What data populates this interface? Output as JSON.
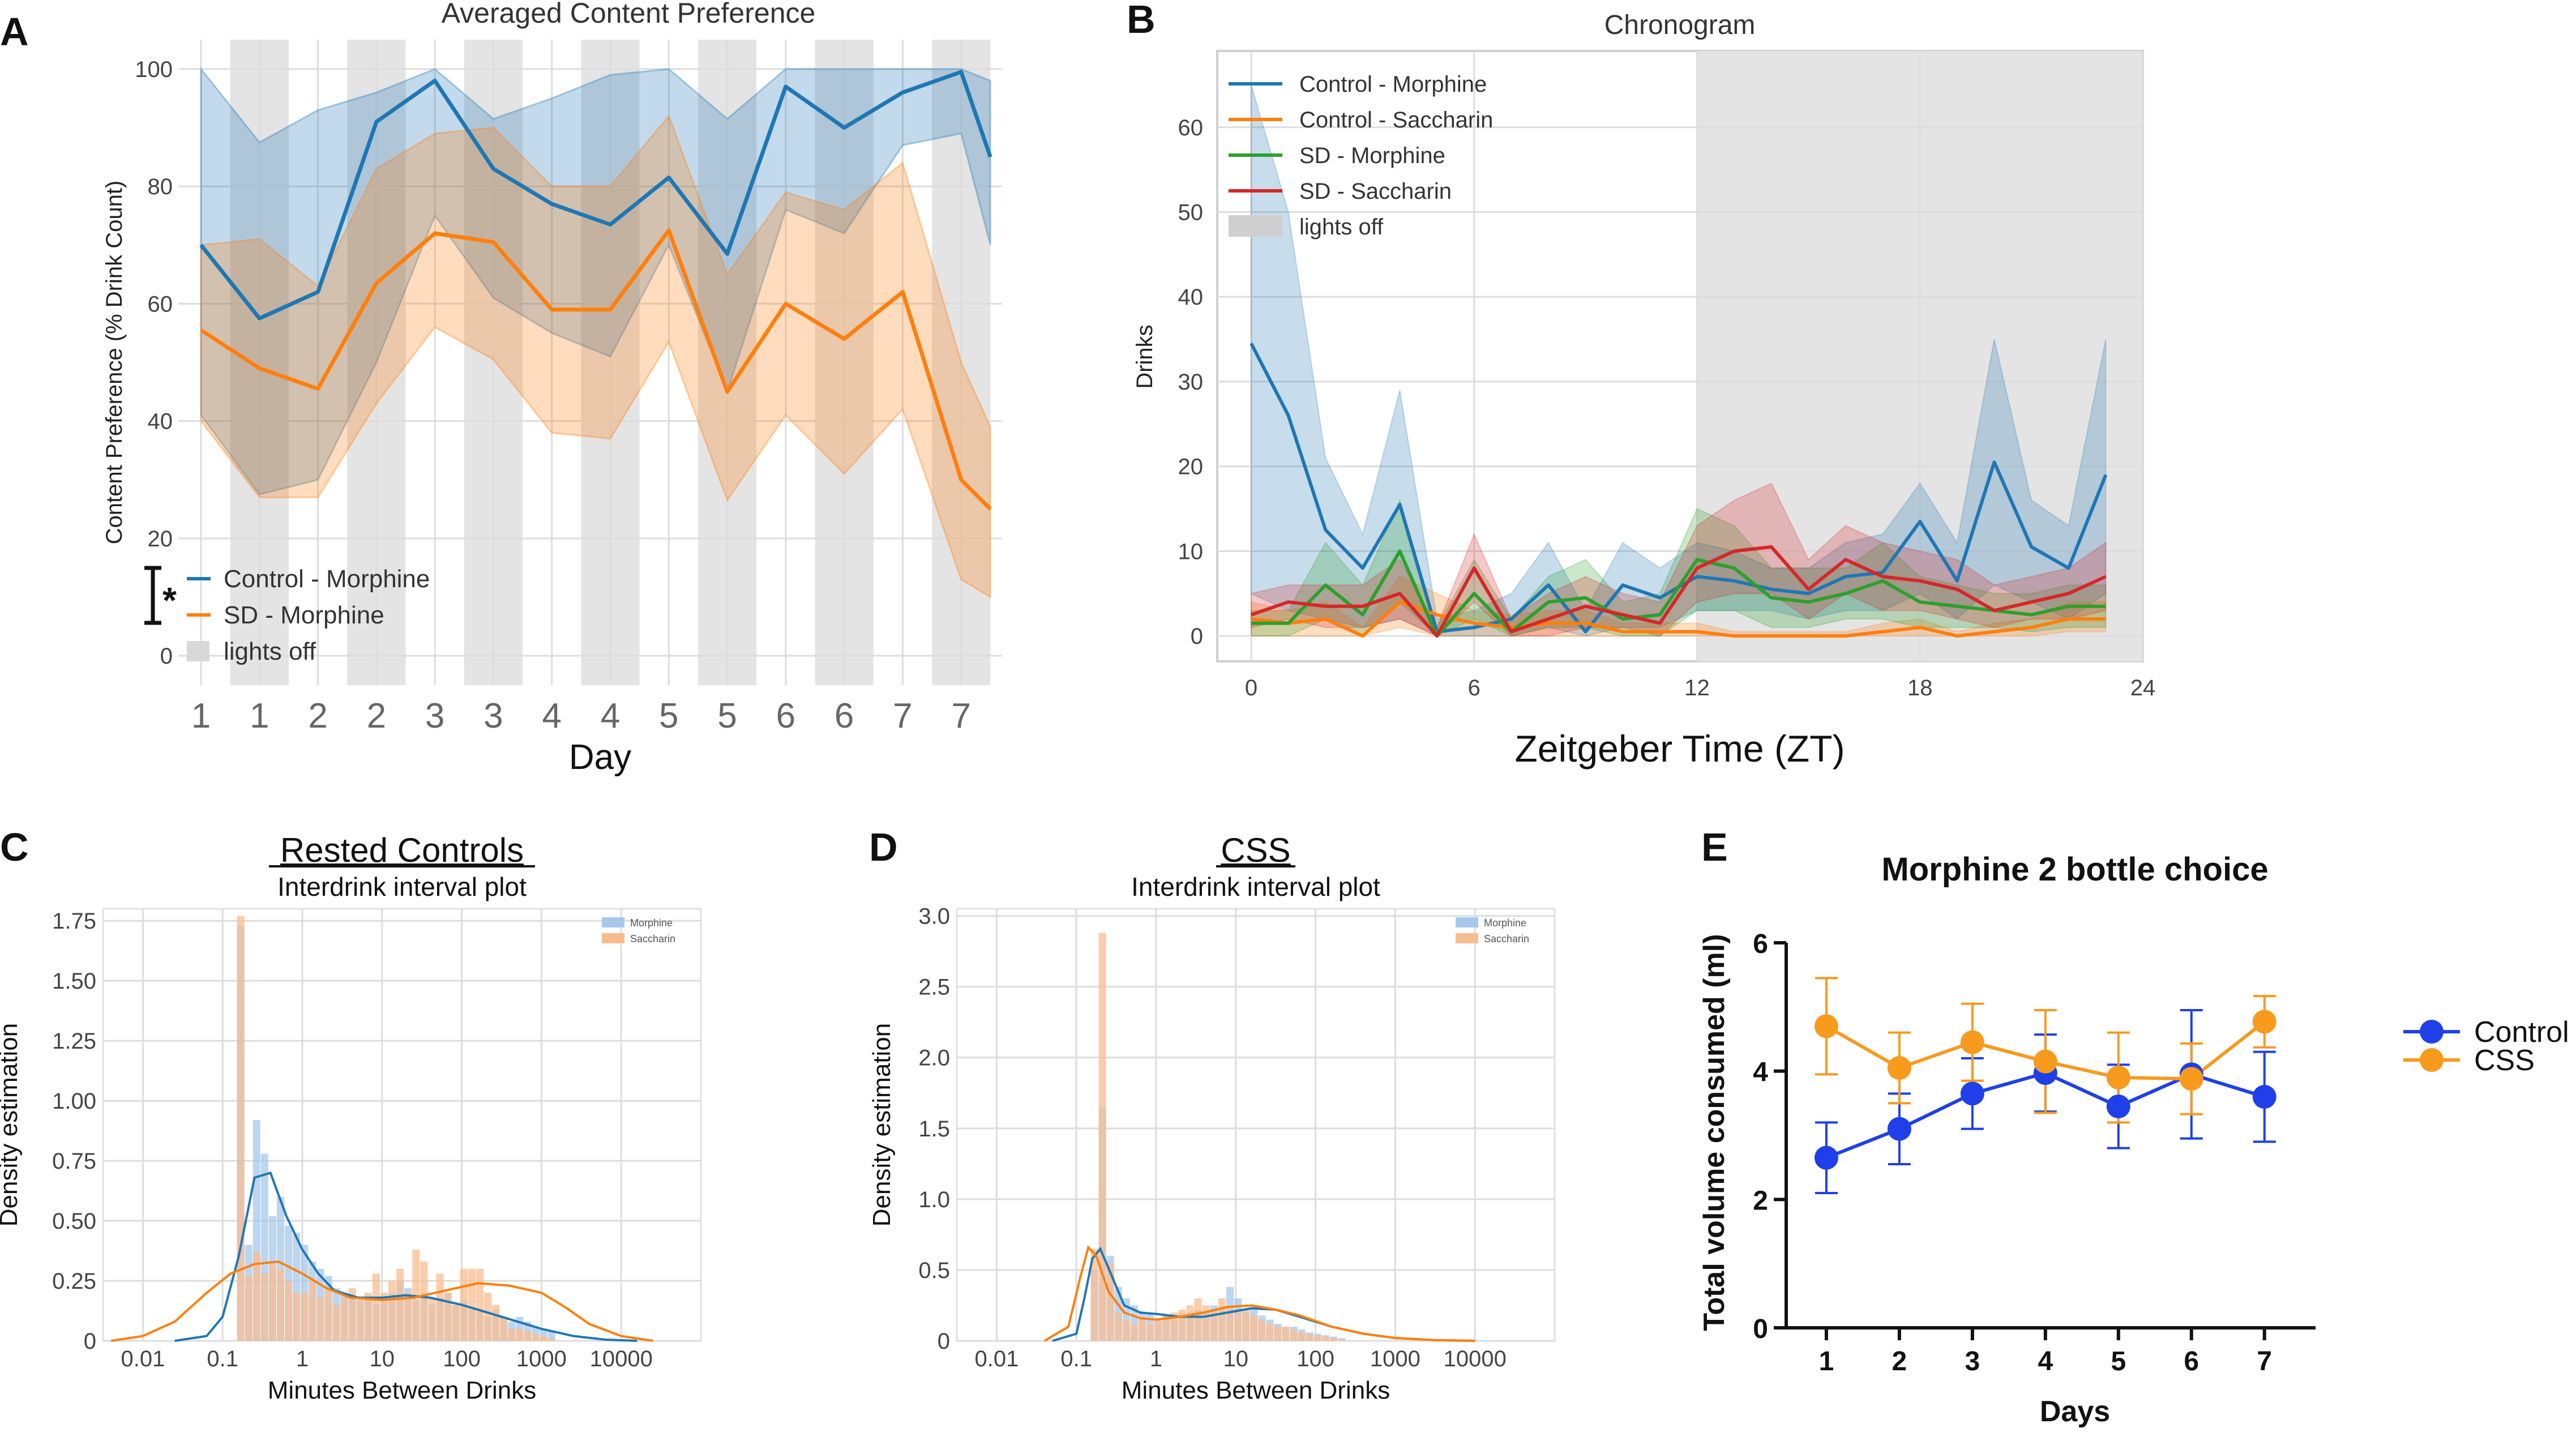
{
  "chart_data": [
    {
      "panel": "A",
      "type": "line",
      "title": "Averaged Content Preference",
      "xlabel": "Day",
      "ylabel": "Content Preference (% Drink Count)",
      "xlim": [
        0,
        13.6
      ],
      "ylim": [
        -5,
        105
      ],
      "yticks": [
        0,
        20,
        40,
        60,
        80,
        100
      ],
      "x_tick_positions": [
        0,
        1,
        2,
        3,
        4,
        5,
        6,
        7,
        8,
        9,
        10,
        11,
        12,
        13
      ],
      "x_tick_labels": [
        "1",
        "1",
        "2",
        "2",
        "3",
        "3",
        "4",
        "4",
        "5",
        "5",
        "6",
        "6",
        "7",
        "7"
      ],
      "lights_off": [
        [
          0.5,
          1.5
        ],
        [
          2.5,
          3.5
        ],
        [
          4.5,
          5.5
        ],
        [
          6.5,
          7.5
        ],
        [
          8.5,
          9.5
        ],
        [
          10.5,
          11.5
        ],
        [
          12.5,
          13.5
        ]
      ],
      "x": [
        0,
        1,
        2,
        3,
        4,
        5,
        6,
        7,
        8,
        9,
        10,
        11,
        12,
        13,
        14
      ],
      "series": [
        {
          "name": "Control - Morphine",
          "color": "#1f77b4",
          "values": [
            70,
            57.5,
            62,
            91,
            98,
            83,
            77,
            73.5,
            81.5,
            68.5,
            97,
            90,
            96,
            99.5,
            85
          ],
          "lower": [
            41,
            27.5,
            30,
            50,
            75,
            61,
            55,
            51,
            70,
            45,
            76,
            72,
            87,
            89,
            70
          ],
          "upper": [
            100,
            87.5,
            93,
            96,
            100,
            91.5,
            95,
            99,
            100,
            91.5,
            100,
            100,
            100,
            100,
            98
          ]
        },
        {
          "name": "SD - Morphine",
          "color": "#ff7f0e",
          "values": [
            55.5,
            49,
            45.5,
            63.5,
            72,
            70.5,
            59,
            59,
            72.5,
            45,
            60,
            54,
            62,
            30,
            25
          ],
          "lower": [
            40,
            27,
            27,
            43,
            56,
            50.5,
            38,
            37,
            53.5,
            26.5,
            41,
            31,
            42,
            13,
            10
          ],
          "upper": [
            70,
            71,
            63,
            83,
            89,
            90,
            80,
            80,
            92,
            65,
            79,
            76,
            84,
            50,
            39
          ]
        }
      ],
      "legend": [
        "Control - Morphine",
        "SD - Morphine",
        "lights off"
      ],
      "annotation": "*"
    },
    {
      "panel": "B",
      "type": "line",
      "title": "Chronogram",
      "xlabel": "Zeitgeber Time (ZT)",
      "ylabel": "Drinks",
      "xlim": [
        -1.5,
        25
      ],
      "ylim": [
        -3,
        69
      ],
      "xticks": [
        0,
        6,
        12,
        18,
        24
      ],
      "yticks": [
        0,
        10,
        20,
        30,
        40,
        50,
        60
      ],
      "lights_off": [
        [
          12,
          24
        ]
      ],
      "x": [
        0,
        1,
        2,
        3,
        4,
        5,
        6,
        7,
        8,
        9,
        10,
        11,
        12,
        13,
        14,
        15,
        16,
        17,
        18,
        19,
        20,
        21,
        22,
        23
      ],
      "series": [
        {
          "name": "Control - Morphine",
          "color": "#1f77b4",
          "values": [
            34.5,
            26,
            12.5,
            8,
            15.5,
            0.5,
            1,
            2,
            6,
            0.5,
            6,
            4.5,
            7,
            6.5,
            5.5,
            5,
            7,
            7.5,
            13.5,
            6.5,
            20.5,
            10.5,
            8,
            19
          ],
          "lower": [
            5,
            3,
            2,
            1,
            2,
            0,
            0,
            0,
            1,
            0,
            1,
            1,
            3,
            3,
            3,
            2,
            3,
            3,
            5,
            2,
            6,
            4,
            2,
            5
          ],
          "upper": [
            65,
            50,
            21,
            12,
            29,
            2,
            3,
            5,
            11,
            3,
            11,
            8,
            11,
            10,
            8,
            8,
            11,
            12,
            18,
            11,
            35,
            16,
            13,
            35
          ]
        },
        {
          "name": "Control - Saccharin",
          "color": "#ff7f0e",
          "values": [
            2,
            1.5,
            2,
            0,
            4,
            2.5,
            1.5,
            1,
            1.5,
            1.5,
            0.5,
            0.5,
            0.5,
            0,
            0,
            0,
            0,
            0.5,
            1,
            0,
            0.5,
            1,
            2,
            2
          ],
          "lower": [
            0,
            0,
            0,
            0,
            1,
            0,
            0,
            0,
            0,
            0,
            0,
            0,
            0,
            0,
            0,
            0,
            0,
            0,
            0,
            0,
            0,
            0,
            0.5,
            0.5
          ],
          "upper": [
            4,
            3,
            4,
            1,
            7,
            5,
            3,
            2.5,
            3,
            3,
            1.5,
            1.5,
            1.5,
            0.5,
            0.5,
            0.5,
            0.5,
            1.5,
            2,
            0.5,
            1.5,
            2,
            4,
            4
          ]
        },
        {
          "name": "SD - Morphine",
          "color": "#2ca02c",
          "values": [
            1.5,
            1.5,
            6,
            2.5,
            10,
            0,
            5,
            0.5,
            4,
            4.5,
            2,
            2.5,
            9,
            8,
            4.5,
            4,
            5,
            6.5,
            4,
            3.5,
            3,
            2.5,
            3.5,
            3.5
          ],
          "lower": [
            0,
            0,
            2,
            0,
            4,
            0,
            2,
            0,
            1,
            1,
            0,
            0,
            3,
            3,
            1,
            1,
            2,
            2,
            1,
            1,
            1,
            0.5,
            1,
            1
          ],
          "upper": [
            3,
            3,
            11,
            6,
            16,
            1,
            9,
            2,
            7,
            9,
            4,
            5,
            15,
            13,
            8,
            8,
            8,
            11,
            7,
            6,
            5,
            5,
            6,
            6
          ]
        },
        {
          "name": "SD - Saccharin",
          "color": "#d62728",
          "values": [
            2.5,
            4,
            3.5,
            3.5,
            5,
            0,
            8,
            0.5,
            2,
            3.5,
            2.5,
            1.5,
            8,
            10,
            10.5,
            5.5,
            9,
            7,
            6.5,
            5.5,
            3,
            4,
            5,
            7
          ],
          "lower": [
            1,
            2,
            1,
            1,
            2,
            0,
            4,
            0,
            0,
            1,
            1,
            0,
            4,
            5,
            5,
            2,
            5,
            3,
            3,
            2,
            1,
            2,
            2,
            3
          ],
          "upper": [
            5,
            6,
            6,
            6,
            9,
            1,
            12,
            2,
            5,
            7,
            5,
            4,
            13,
            16,
            18,
            9,
            13,
            11,
            10,
            9,
            6,
            7,
            8,
            11
          ]
        }
      ],
      "legend": [
        "Control - Morphine",
        "Control - Saccharin",
        "SD - Morphine",
        "SD - Saccharin",
        "lights off"
      ]
    },
    {
      "panel": "C",
      "type": "bar",
      "heading": "Rested Controls",
      "title": "Interdrink interval plot",
      "xlabel": "Minutes Between Drinks",
      "ylabel": "Density estimation",
      "xscale": "log",
      "xlim_log10": [
        -2.5,
        5
      ],
      "ylim": [
        0,
        1.8
      ],
      "xticks": [
        "0.01",
        "0.1",
        "1",
        "10",
        "100",
        "1000",
        "10000"
      ],
      "xtick_log10": [
        -2,
        -1,
        0,
        1,
        2,
        3,
        4
      ],
      "yticks": [
        "0",
        "0.25",
        "0.50",
        "0.75",
        "1.00",
        "1.25",
        "1.50",
        "1.75"
      ],
      "ytick_values": [
        0,
        0.25,
        0.5,
        0.75,
        1.0,
        1.25,
        1.5,
        1.75
      ],
      "bin_start_log10": -0.82,
      "bin_width_log10": 0.1,
      "series": [
        {
          "name": "Morphine",
          "color": "#a6c8ec",
          "hist": [
            1.73,
            0.4,
            0.92,
            0.78,
            0.52,
            0.6,
            0.48,
            0.45,
            0.4,
            0.33,
            0.3,
            0.27,
            0.22,
            0.2,
            0.18,
            0.17,
            0.18,
            0.15,
            0.17,
            0.2,
            0.25,
            0.22,
            0.17,
            0.2,
            0.15,
            0.18,
            0.2,
            0.15,
            0.17,
            0.13,
            0.12,
            0.1,
            0.13,
            0.1,
            0.08,
            0.1,
            0.08,
            0.06,
            0.05,
            0.04
          ],
          "kde_x_log10": [
            -1.6,
            -1.2,
            -1.0,
            -0.8,
            -0.6,
            -0.4,
            -0.2,
            0.0,
            0.2,
            0.4,
            0.7,
            1.0,
            1.3,
            1.6,
            2.0,
            2.3,
            2.6,
            3.0,
            3.4,
            3.8,
            4.2
          ],
          "kde_y": [
            0.0,
            0.02,
            0.1,
            0.35,
            0.68,
            0.7,
            0.52,
            0.38,
            0.28,
            0.21,
            0.18,
            0.18,
            0.19,
            0.18,
            0.15,
            0.12,
            0.09,
            0.05,
            0.02,
            0.005,
            0.0
          ]
        },
        {
          "name": "Saccharin",
          "color": "#f9bc8f",
          "hist": [
            1.77,
            0.27,
            0.37,
            0.28,
            0.32,
            0.3,
            0.25,
            0.2,
            0.2,
            0.25,
            0.18,
            0.22,
            0.15,
            0.18,
            0.22,
            0.17,
            0.2,
            0.28,
            0.2,
            0.25,
            0.3,
            0.2,
            0.38,
            0.33,
            0.18,
            0.28,
            0.2,
            0.15,
            0.3,
            0.3,
            0.3,
            0.2,
            0.15,
            0.1,
            0.05,
            0.05,
            0.04,
            0.03,
            0.02,
            0.01
          ],
          "kde_x_log10": [
            -2.4,
            -2.0,
            -1.6,
            -1.2,
            -0.9,
            -0.6,
            -0.3,
            0.0,
            0.3,
            0.6,
            1.0,
            1.4,
            1.8,
            2.2,
            2.6,
            3.0,
            3.3,
            3.6,
            4.0,
            4.4
          ],
          "kde_y": [
            0.0,
            0.02,
            0.08,
            0.2,
            0.28,
            0.32,
            0.33,
            0.28,
            0.22,
            0.18,
            0.17,
            0.18,
            0.21,
            0.24,
            0.23,
            0.2,
            0.14,
            0.07,
            0.02,
            0.0
          ]
        }
      ],
      "legend": [
        "Morphine",
        "Saccharin"
      ]
    },
    {
      "panel": "D",
      "type": "bar",
      "heading": "CSS",
      "title": "Interdrink interval plot",
      "xlabel": "Minutes Between Drinks",
      "ylabel": "Density estimation",
      "xscale": "log",
      "xlim_log10": [
        -2.5,
        5
      ],
      "ylim": [
        0,
        3.05
      ],
      "xticks": [
        "0.01",
        "0.1",
        "1",
        "10",
        "100",
        "1000",
        "10000"
      ],
      "xtick_log10": [
        -2,
        -1,
        0,
        1,
        2,
        3,
        4
      ],
      "yticks": [
        "0",
        "0.5",
        "1.0",
        "1.5",
        "2.0",
        "2.5",
        "3.0"
      ],
      "ytick_values": [
        0,
        0.5,
        1.0,
        1.5,
        2.0,
        2.5,
        3.0
      ],
      "bin_start_log10": -0.82,
      "bin_width_log10": 0.1,
      "series": [
        {
          "name": "Morphine",
          "color": "#a6c8ec",
          "hist": [
            0.5,
            1.65,
            0.6,
            0.38,
            0.3,
            0.25,
            0.2,
            0.2,
            0.15,
            0.18,
            0.15,
            0.2,
            0.2,
            0.22,
            0.2,
            0.25,
            0.22,
            0.38,
            0.3,
            0.2,
            0.22,
            0.18,
            0.15,
            0.12,
            0.1,
            0.1,
            0.08,
            0.06,
            0.05,
            0.04,
            0.03,
            0.02
          ],
          "kde_x_log10": [
            -1.3,
            -1.0,
            -0.9,
            -0.8,
            -0.7,
            -0.55,
            -0.4,
            -0.2,
            0.0,
            0.3,
            0.6,
            0.9,
            1.2,
            1.5,
            1.8,
            2.2,
            2.6,
            3.0,
            3.5,
            4.0
          ],
          "kde_y": [
            0.0,
            0.05,
            0.3,
            0.58,
            0.65,
            0.45,
            0.25,
            0.2,
            0.19,
            0.17,
            0.17,
            0.2,
            0.23,
            0.22,
            0.17,
            0.1,
            0.05,
            0.02,
            0.005,
            0.0
          ]
        },
        {
          "name": "Saccharin",
          "color": "#f9bc8f",
          "hist": [
            0.65,
            2.88,
            0.55,
            0.2,
            0.15,
            0.12,
            0.15,
            0.12,
            0.15,
            0.18,
            0.2,
            0.22,
            0.25,
            0.3,
            0.25,
            0.22,
            0.3,
            0.25,
            0.2,
            0.22,
            0.18,
            0.15,
            0.12,
            0.1,
            0.1,
            0.08,
            0.06,
            0.05,
            0.04,
            0.03,
            0.02,
            0.01
          ],
          "kde_x_log10": [
            -1.4,
            -1.1,
            -0.95,
            -0.85,
            -0.75,
            -0.6,
            -0.4,
            -0.2,
            0.0,
            0.3,
            0.6,
            0.9,
            1.2,
            1.5,
            1.8,
            2.2,
            2.6,
            3.0,
            3.5,
            4.0
          ],
          "kde_y": [
            0.0,
            0.1,
            0.45,
            0.66,
            0.6,
            0.35,
            0.2,
            0.16,
            0.15,
            0.17,
            0.2,
            0.24,
            0.25,
            0.22,
            0.18,
            0.1,
            0.05,
            0.02,
            0.005,
            0.0
          ]
        }
      ],
      "legend": [
        "Morphine",
        "Saccharin"
      ]
    },
    {
      "panel": "E",
      "type": "line",
      "title": "Morphine 2 bottle choice",
      "xlabel": "Days",
      "ylabel": "Total volume consumed (ml)",
      "categories": [
        "1",
        "2",
        "3",
        "4",
        "5",
        "6",
        "7"
      ],
      "xlim": [
        0.45,
        7.7
      ],
      "ylim": [
        0,
        6
      ],
      "yticks": [
        0,
        2,
        4,
        6
      ],
      "series": [
        {
          "name": "Control",
          "color": "#1f3fe8",
          "values": [
            2.65,
            3.1,
            3.65,
            3.97,
            3.45,
            3.95,
            3.6
          ],
          "err": [
            0.55,
            0.55,
            0.55,
            0.6,
            0.65,
            1.0,
            0.7
          ]
        },
        {
          "name": "CSS",
          "color": "#f79a1e",
          "values": [
            4.7,
            4.05,
            4.45,
            4.15,
            3.9,
            3.88,
            4.77
          ],
          "err": [
            0.75,
            0.55,
            0.6,
            0.8,
            0.7,
            0.55,
            0.4
          ]
        }
      ],
      "legend": [
        "Control",
        "CSS"
      ]
    }
  ],
  "panel_letters": [
    "A",
    "B",
    "C",
    "D",
    "E"
  ],
  "colors": {
    "grid": "#dddddd",
    "lights_off": "#e4e4e4",
    "axis_text": "#444444",
    "frame": "#cfcfcf"
  }
}
